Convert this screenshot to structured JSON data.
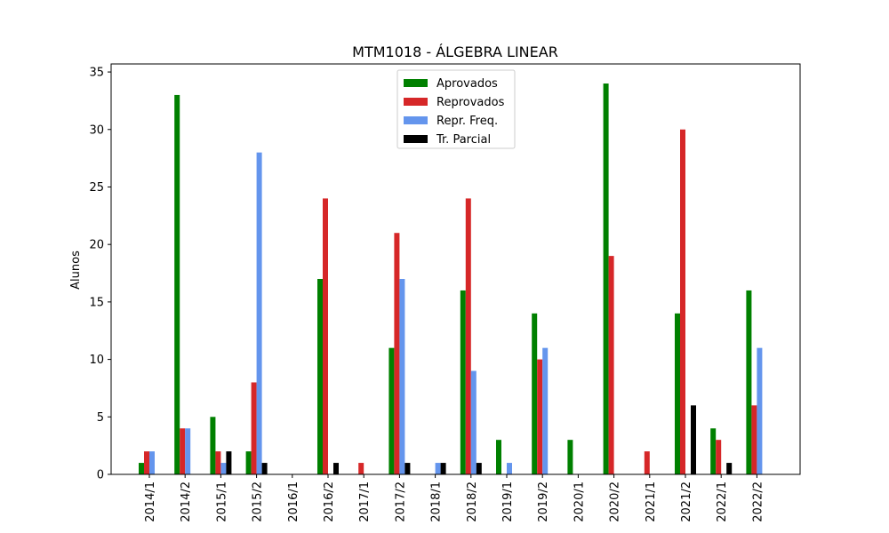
{
  "chart_data": {
    "type": "bar",
    "title": "MTM1018 - ÁLGEBRA LINEAR",
    "xlabel": "",
    "ylabel": "Alunos",
    "ylim": [
      0,
      35.7
    ],
    "yticks": [
      0,
      5,
      10,
      15,
      20,
      25,
      30,
      35
    ],
    "grid": false,
    "legend_placement": "top-center",
    "categories": [
      "2014/1",
      "2014/2",
      "2015/1",
      "2015/2",
      "2016/1",
      "2016/2",
      "2017/1",
      "2017/2",
      "2018/1",
      "2018/2",
      "2019/1",
      "2019/2",
      "2020/1",
      "2020/2",
      "2021/1",
      "2021/2",
      "2022/1",
      "2022/2"
    ],
    "series": [
      {
        "name": "Aprovados",
        "color": "#008000",
        "values": [
          1,
          33,
          5,
          2,
          0,
          17,
          0,
          11,
          0,
          16,
          3,
          14,
          3,
          34,
          0,
          14,
          4,
          16
        ]
      },
      {
        "name": "Reprovados",
        "color": "#d62728",
        "values": [
          2,
          4,
          2,
          8,
          0,
          24,
          1,
          21,
          0,
          24,
          0,
          10,
          0,
          19,
          2,
          30,
          3,
          6
        ]
      },
      {
        "name": "Repr. Freq.",
        "color": "#6495ed",
        "values": [
          2,
          4,
          1,
          28,
          0,
          0,
          0,
          17,
          1,
          9,
          1,
          11,
          0,
          0,
          0,
          0,
          0,
          11
        ]
      },
      {
        "name": "Tr. Parcial",
        "color": "#000000",
        "values": [
          0,
          0,
          2,
          1,
          0,
          1,
          0,
          1,
          1,
          1,
          0,
          0,
          0,
          0,
          0,
          6,
          1,
          0
        ]
      }
    ]
  }
}
